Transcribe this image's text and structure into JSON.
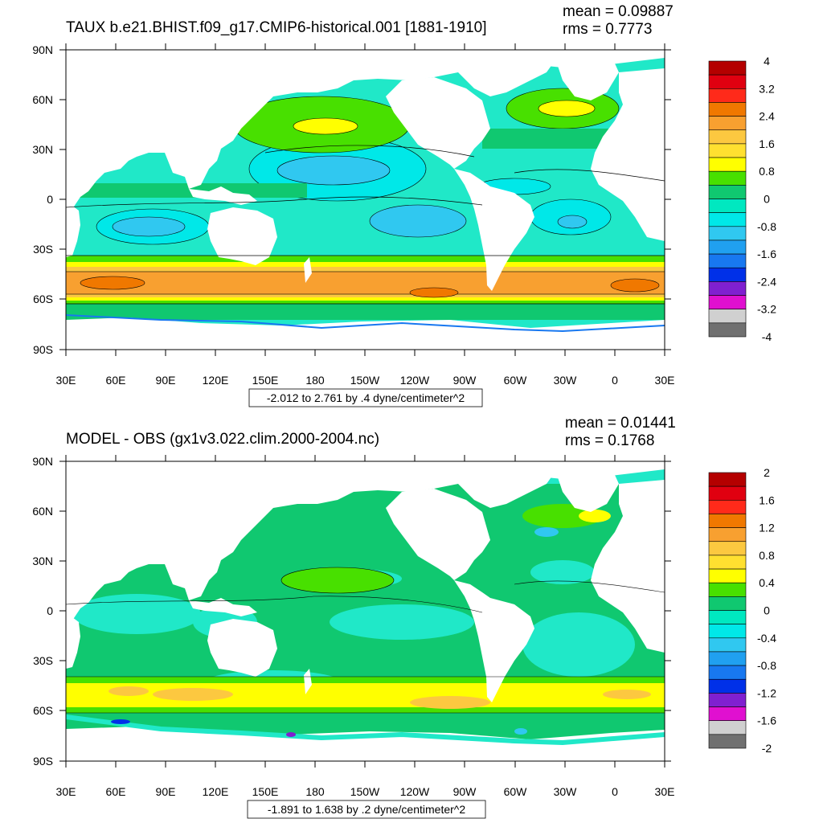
{
  "figure": {
    "axis_labels": {
      "lat": [
        "90N",
        "60N",
        "30N",
        "0",
        "30S",
        "60S",
        "90S"
      ],
      "lon": [
        "30E",
        "60E",
        "90E",
        "120E",
        "150E",
        "180",
        "150W",
        "120W",
        "90W",
        "60W",
        "30W",
        "0",
        "30E"
      ]
    },
    "colors": {
      "ocean_base": "#20e8c8",
      "land": "#ffffff",
      "contour": "#000000"
    }
  },
  "panels": [
    {
      "title": "TAUX b.e21.BHIST.f09_g17.CMIP6-historical.001 [1881-1910]",
      "mean": "mean = 0.09887",
      "rms": "rms = 0.7773",
      "range_label": "-2.012 to 2.761 by .4 dyne/centimeter^2",
      "colorbar": {
        "labels": [
          "4",
          "3.2",
          "2.4",
          "1.6",
          "0.8",
          "0",
          "-0.8",
          "-1.6",
          "-2.4",
          "-3.2",
          "-4"
        ],
        "colors": [
          "#b40000",
          "#e00010",
          "#ff2a1a",
          "#f07800",
          "#f8a030",
          "#fcc840",
          "#ffe030",
          "#ffff00",
          "#48e000",
          "#10c870",
          "#00e8c0",
          "#00e8e8",
          "#30c8f0",
          "#20a0f0",
          "#1878f0",
          "#0030e8",
          "#8020d0",
          "#e010d0",
          "#d0d0d0",
          "#707070"
        ]
      }
    },
    {
      "title": "MODEL - OBS (gx1v3.022.clim.2000-2004.nc)",
      "mean": "mean = 0.01441",
      "rms": "rms = 0.1768",
      "range_label": "-1.891 to 1.638 by .2 dyne/centimeter^2",
      "colorbar": {
        "labels": [
          "2",
          "1.6",
          "1.2",
          "0.8",
          "0.4",
          "0",
          "-0.4",
          "-0.8",
          "-1.2",
          "-1.6",
          "-2"
        ],
        "colors": [
          "#b40000",
          "#e00010",
          "#ff2a1a",
          "#f07800",
          "#f8a030",
          "#fcc840",
          "#ffe030",
          "#ffff00",
          "#48e000",
          "#10c870",
          "#00e8c0",
          "#00e8e8",
          "#30c8f0",
          "#20a0f0",
          "#1878f0",
          "#0030e8",
          "#8020d0",
          "#e010d0",
          "#d0d0d0",
          "#707070"
        ]
      }
    }
  ]
}
